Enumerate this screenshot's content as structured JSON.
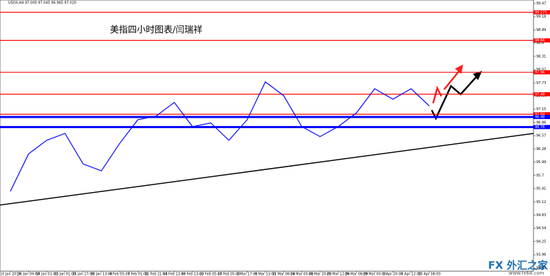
{
  "chart_data": {
    "type": "line",
    "header": "USDX,H4 97.000 97.045 96.965 97.020",
    "title": "美指四小时图表/闫瑞祥",
    "watermark": "FX 外汇之家",
    "watermark_url": "www.fx68.com",
    "categories": [
      "10 Jan 2019",
      "16 Jan 09:00",
      "18 Jan 01:00",
      "23 Jan 01:00",
      "25 Jan 17:00",
      "30 Jan 13:00",
      "4 Feb 05:00",
      "7 Feb 01:00",
      "11 Feb 21:00",
      "14 Feb 13:00",
      "19 Feb 13:00",
      "22 Feb 05:00",
      "27 Feb 05:00",
      "1 Mar 17:00",
      "6 Mar 13:00",
      "11 Mar 08:00",
      "14 Mar 00:00",
      "18 Mar 20:00",
      "21 Mar 12:00",
      "26 Mar 08:00",
      "29 Mar 00:00",
      "2 Apr 20:00",
      "5 Apr 12:00",
      "10 Apr 08:00"
    ],
    "values": [
      95.35,
      96.17,
      96.47,
      96.62,
      95.95,
      95.8,
      96.4,
      96.92,
      97.0,
      97.3,
      96.77,
      96.85,
      96.47,
      96.92,
      97.75,
      97.45,
      96.77,
      96.55,
      96.77,
      97.07,
      97.6,
      97.37,
      97.6,
      97.22
    ],
    "color": "#0000ff",
    "levels": [
      {
        "value": 99.275,
        "color": "#ff0000"
      },
      {
        "value": 98.66,
        "color": "#ff0000"
      },
      {
        "value": 97.96,
        "color": "#ff0000"
      },
      {
        "value": 97.48,
        "color": "#ff0000"
      },
      {
        "value": 97.04,
        "color": "#ff0000"
      },
      {
        "value": 96.98,
        "color": "#0000ff"
      },
      {
        "value": 96.76,
        "color": "#0000ff"
      }
    ],
    "trendline": {
      "values": [
        95.05,
        96.62
      ],
      "color": "#000000"
    },
    "ylim": [
      93.6,
      99.545
    ],
    "yticks": [
      99.47,
      99.18,
      98.89,
      98.6,
      98.31,
      98.02,
      97.73,
      97.44,
      97.15,
      96.86,
      96.57,
      96.28,
      95.99,
      95.7,
      95.41,
      95.12,
      94.83,
      94.54,
      94.25,
      93.96,
      93.67
    ]
  }
}
